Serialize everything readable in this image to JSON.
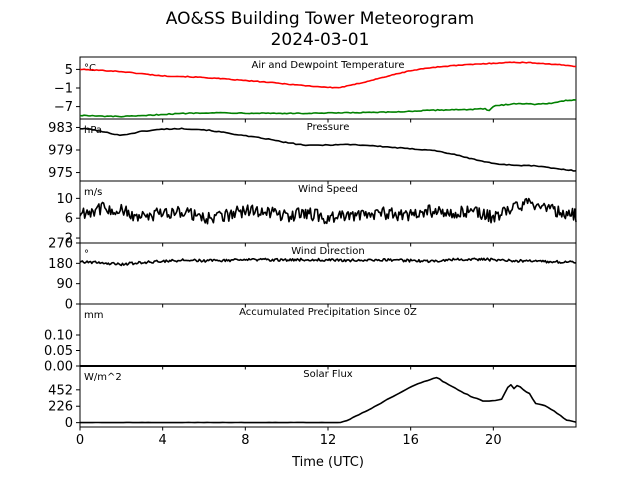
{
  "figure": {
    "title_line1": "AO&SS Building Tower Meteorogram",
    "title_line2": "2024-03-01",
    "xlabel": "Time (UTC)",
    "xticks": [
      0,
      4,
      8,
      12,
      16,
      20
    ],
    "xlim": [
      0,
      24
    ]
  },
  "chart_data": [
    {
      "type": "line",
      "title": "Air and Dewpoint Temperature",
      "ylabel": "°C",
      "ylim": [
        -11,
        9
      ],
      "yticks": [
        5,
        -1,
        -7
      ],
      "series": [
        {
          "color": "#ff0000",
          "x": [
            0,
            1,
            2,
            3,
            4,
            5,
            6,
            7,
            8,
            9,
            10,
            11,
            12,
            12.5,
            13,
            14,
            15,
            16,
            17,
            18,
            19,
            20,
            21,
            22,
            23,
            24
          ],
          "values": [
            5.0,
            4.7,
            4.3,
            3.6,
            2.9,
            2.7,
            2.4,
            1.9,
            1.4,
            0.9,
            0.3,
            -0.3,
            -0.8,
            -0.9,
            -0.3,
            1.3,
            3.0,
            4.6,
            5.6,
            6.2,
            6.6,
            7.0,
            7.3,
            7.1,
            6.6,
            6.0
          ]
        },
        {
          "color": "#008000",
          "x": [
            0,
            1,
            2,
            3,
            4,
            5,
            6,
            7,
            8,
            9,
            10,
            11,
            12,
            13,
            14,
            15,
            16,
            17,
            18,
            19,
            19.6,
            19.8,
            20,
            21,
            22,
            23,
            23.5,
            24
          ],
          "values": [
            -9.8,
            -10.1,
            -10.2,
            -10.0,
            -9.5,
            -9.2,
            -9.0,
            -9.0,
            -9.1,
            -9.1,
            -9.2,
            -9.2,
            -9.1,
            -9.0,
            -8.9,
            -8.8,
            -8.5,
            -8.2,
            -8.0,
            -7.9,
            -7.7,
            -8.4,
            -6.9,
            -6.0,
            -6.2,
            -5.8,
            -5.0,
            -4.8
          ]
        }
      ]
    },
    {
      "type": "line",
      "title": "Pressure",
      "ylabel": "hPa",
      "ylim": [
        973.5,
        984.5
      ],
      "yticks": [
        983,
        979,
        975
      ],
      "series": [
        {
          "color": "#000000",
          "x": [
            0,
            0.5,
            1,
            2,
            3,
            4,
            5,
            6,
            7,
            8,
            9,
            10,
            11,
            12,
            13,
            14,
            15,
            16,
            17,
            18,
            19,
            20,
            21,
            22,
            23,
            24
          ],
          "values": [
            982.8,
            982.7,
            982.3,
            981.6,
            982.3,
            982.7,
            982.8,
            982.6,
            982.1,
            981.5,
            981.0,
            980.3,
            979.8,
            979.9,
            980.0,
            979.8,
            979.5,
            979.2,
            979.0,
            978.3,
            977.4,
            976.6,
            976.3,
            976.2,
            975.7,
            975.3
          ]
        }
      ]
    },
    {
      "type": "line",
      "title": "Wind Speed",
      "ylabel": "m/s",
      "ylim": [
        1,
        13.5
      ],
      "yticks": [
        10,
        6,
        2
      ],
      "series": [
        {
          "color": "#000000",
          "x": [
            0,
            1,
            2,
            3,
            4,
            5,
            6,
            7,
            8,
            9,
            10,
            11,
            12,
            13,
            14,
            15,
            16,
            17,
            18,
            19,
            20,
            21,
            22,
            23,
            24
          ],
          "values": [
            7,
            8,
            7.5,
            6,
            7,
            7.5,
            6,
            6.5,
            7.5,
            7.5,
            6.5,
            7,
            6,
            6.5,
            7,
            7,
            6.5,
            7.5,
            7,
            7.5,
            6,
            8.5,
            9,
            7.5,
            6.5
          ]
        }
      ]
    },
    {
      "type": "line",
      "title": "Wind Direction",
      "ylabel": "°",
      "ylim": [
        0,
        270
      ],
      "yticks": [
        270,
        180,
        90,
        0
      ],
      "series": [
        {
          "color": "#000000",
          "x": [
            0,
            1,
            2,
            3,
            4,
            5,
            6,
            7,
            8,
            9,
            10,
            11,
            12,
            13,
            14,
            15,
            16,
            17,
            18,
            19,
            20,
            21,
            22,
            23,
            24
          ],
          "values": [
            188,
            183,
            176,
            183,
            190,
            194,
            192,
            193,
            195,
            196,
            195,
            197,
            195,
            193,
            194,
            195,
            192,
            188,
            196,
            199,
            196,
            191,
            188,
            186,
            187
          ]
        }
      ]
    },
    {
      "type": "line",
      "title": "Accumulated Precipitation Since 0Z",
      "ylabel": "mm",
      "ylim": [
        0,
        0.2
      ],
      "yticks": [
        0.1,
        0.05,
        0.0
      ],
      "ytick_labels": [
        "0.10",
        "0.05",
        "0.00"
      ],
      "series": [
        {
          "color": "#000000",
          "x": [
            0,
            24
          ],
          "values": [
            0,
            0
          ]
        }
      ]
    },
    {
      "type": "line",
      "title": "Solar Flux",
      "ylabel": "W/m^2",
      "ylim": [
        -60,
        780
      ],
      "yticks": [
        452,
        226,
        0
      ],
      "series": [
        {
          "color": "#000000",
          "x": [
            0,
            12.6,
            13,
            14,
            15,
            16,
            16.5,
            17,
            17.3,
            17.6,
            18,
            18.5,
            19,
            19.5,
            20,
            20.4,
            20.8,
            21,
            21.2,
            21.5,
            21.8,
            22,
            22.5,
            23,
            23.5,
            24
          ],
          "values": [
            0,
            0,
            40,
            180,
            340,
            490,
            550,
            600,
            620,
            560,
            500,
            420,
            350,
            300,
            300,
            320,
            540,
            470,
            520,
            440,
            390,
            270,
            230,
            150,
            40,
            5
          ]
        }
      ]
    }
  ]
}
